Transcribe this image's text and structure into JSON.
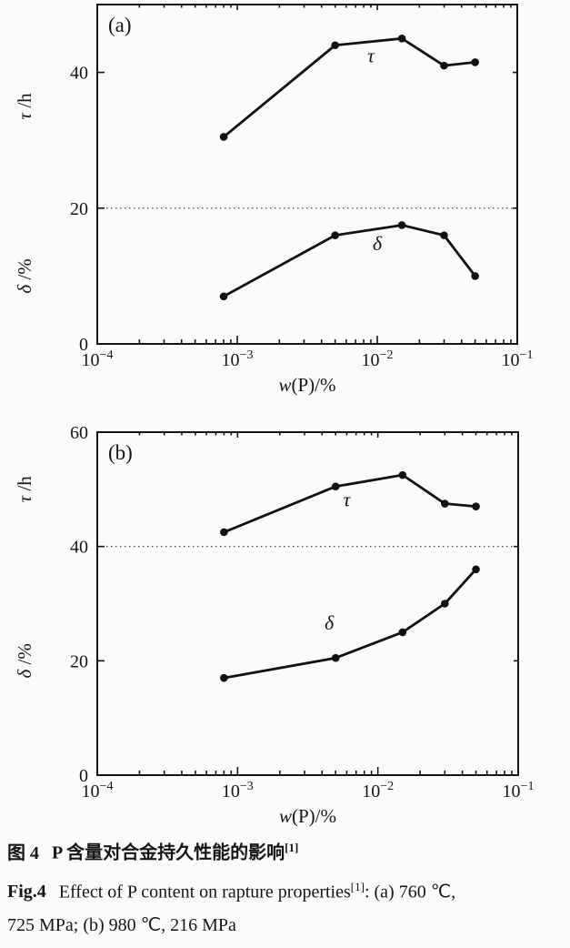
{
  "caption": {
    "zh": {
      "label": "图 4",
      "text": "P 含量对合金持久性能的影响",
      "sup": "[1]"
    },
    "en": {
      "label": "Fig.4",
      "text": "Effect of P content on rapture properties",
      "sup": "[1]",
      "rest": ": (a) 760 ℃,",
      "line2": "725 MPa; (b) 980 ℃, 216 MPa"
    }
  },
  "chart_data": [
    {
      "type": "line",
      "panel": "(a)",
      "xscale": "log",
      "xlabel": "w(P)/%",
      "xlim": [
        0.0001,
        0.1
      ],
      "x_tick_exponents": [
        -4,
        -3,
        -2,
        -1
      ],
      "x": [
        0.0008,
        0.005,
        0.015,
        0.03,
        0.05
      ],
      "series": [
        {
          "name": "τ",
          "axis_label": "τ/h",
          "values": [
            30.5,
            44,
            45,
            41,
            41.5
          ],
          "label_at": {
            "x": 0.009,
            "y": 41.5
          }
        },
        {
          "name": "δ",
          "axis_label": "δ/%",
          "values": [
            7,
            16,
            17.5,
            16,
            10
          ],
          "label_at": {
            "x": 0.01,
            "y": 13.8
          }
        }
      ],
      "ylim": [
        0,
        50
      ],
      "yticks": [
        0,
        20,
        40
      ],
      "gridline_y": 20,
      "legend": "inline curve labels",
      "grid": "single dotted horizontal line"
    },
    {
      "type": "line",
      "panel": "(b)",
      "xscale": "log",
      "xlabel": "w(P)/%",
      "xlim": [
        0.0001,
        0.1
      ],
      "x_tick_exponents": [
        -4,
        -3,
        -2,
        -1
      ],
      "x": [
        0.0008,
        0.005,
        0.015,
        0.03,
        0.05
      ],
      "series": [
        {
          "name": "τ",
          "axis_label": "τ/h",
          "values": [
            42.5,
            50.5,
            52.5,
            47.5,
            47
          ],
          "label_at": {
            "x": 0.006,
            "y": 47
          }
        },
        {
          "name": "δ",
          "axis_label": "δ/%",
          "values": [
            17,
            20.5,
            25,
            30,
            36
          ],
          "label_at": {
            "x": 0.0045,
            "y": 25.5
          }
        }
      ],
      "ylim": [
        0,
        60
      ],
      "yticks": [
        0,
        20,
        40,
        60
      ],
      "gridline_y": 40,
      "legend": "inline curve labels",
      "grid": "single dotted horizontal line"
    }
  ],
  "ink_color": "#111111"
}
